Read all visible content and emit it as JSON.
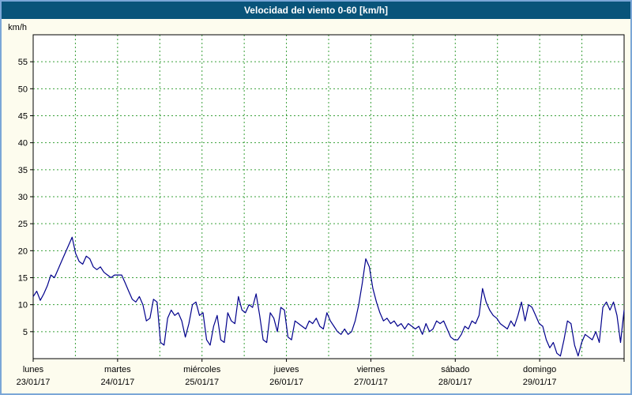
{
  "window": {
    "title": "Velocidad del viento 0-60 [km/h]"
  },
  "colors": {
    "frame_border": "#7ba7d7",
    "background": "#fdfcee",
    "title_bar_bg": "#09547a",
    "title_text": "#ffffff",
    "plot_bg": "#ffffff",
    "grid": "#3aa03a",
    "axis": "#000000",
    "line": "#00008b",
    "label_text": "#000000"
  },
  "chart_data": {
    "type": "line",
    "title": "Velocidad del viento 0-60 [km/h]",
    "ylabel": "km/h",
    "xlabel": "",
    "ylim": [
      0,
      60
    ],
    "ytick_interval": 5,
    "ytick_labels": [
      "5",
      "10",
      "15",
      "20",
      "25",
      "30",
      "35",
      "40",
      "45",
      "50",
      "55"
    ],
    "grid": "dashed-green, horizontal every 5 km/h, vertical every 12 h",
    "legend": "none",
    "x_axis": {
      "hours_per_day": 24,
      "days": [
        {
          "name": "lunes",
          "date": "23/01/17"
        },
        {
          "name": "martes",
          "date": "24/01/17"
        },
        {
          "name": "miércoles",
          "date": "25/01/17"
        },
        {
          "name": "jueves",
          "date": "26/01/17"
        },
        {
          "name": "viernes",
          "date": "27/01/17"
        },
        {
          "name": "sábado",
          "date": "28/01/17"
        },
        {
          "name": "domingo",
          "date": "29/01/17"
        }
      ]
    },
    "series": [
      {
        "name": "velocidad del viento (km/h)",
        "sampling": "hourly",
        "values": [
          11.5,
          12.5,
          10.8,
          12.0,
          13.5,
          15.5,
          15.0,
          16.5,
          18.0,
          19.5,
          21.0,
          22.5,
          19.5,
          18.0,
          17.5,
          19.0,
          18.5,
          17.0,
          16.5,
          17.0,
          16.0,
          15.5,
          15.0,
          15.5,
          15.5,
          15.5,
          14.0,
          12.5,
          11.0,
          10.5,
          11.5,
          10.0,
          7.0,
          7.5,
          11.0,
          10.5,
          3.0,
          2.5,
          7.5,
          9.0,
          8.0,
          8.5,
          7.0,
          4.0,
          6.5,
          10.0,
          10.5,
          8.0,
          8.5,
          3.5,
          2.5,
          6.0,
          8.0,
          3.5,
          3.0,
          8.5,
          7.0,
          6.5,
          11.5,
          9.0,
          8.5,
          10.0,
          9.5,
          12.0,
          8.0,
          3.5,
          3.0,
          8.5,
          7.5,
          5.0,
          9.5,
          9.0,
          4.0,
          3.5,
          7.0,
          6.5,
          6.0,
          5.5,
          7.0,
          6.5,
          7.5,
          6.0,
          5.5,
          8.5,
          7.0,
          6.0,
          5.0,
          4.5,
          5.5,
          4.5,
          5.0,
          7.0,
          10.0,
          14.0,
          18.5,
          17.0,
          13.0,
          10.5,
          8.5,
          7.0,
          7.5,
          6.5,
          7.0,
          6.0,
          6.5,
          5.5,
          6.5,
          6.0,
          5.5,
          6.0,
          4.5,
          6.5,
          5.0,
          5.5,
          7.0,
          6.5,
          7.0,
          5.5,
          4.0,
          3.5,
          3.5,
          4.5,
          6.0,
          5.5,
          7.0,
          6.5,
          8.0,
          13.0,
          10.5,
          9.0,
          8.0,
          7.5,
          6.5,
          6.0,
          5.5,
          7.0,
          6.0,
          8.0,
          10.5,
          7.0,
          10.0,
          9.5,
          8.0,
          6.5,
          6.0,
          3.5,
          2.0,
          3.0,
          1.0,
          0.5,
          3.5,
          7.0,
          6.5,
          2.5,
          0.5,
          3.0,
          4.5,
          4.0,
          3.5,
          5.0,
          3.0,
          9.5,
          10.5,
          9.0,
          10.5,
          8.0,
          3.0,
          9.0
        ]
      }
    ]
  }
}
